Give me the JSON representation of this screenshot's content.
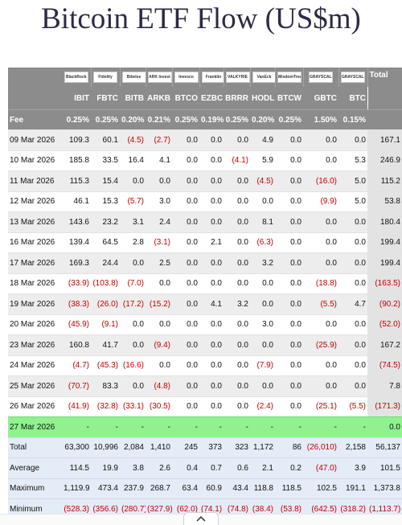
{
  "title": "Bitcoin ETF Flow (US$m)",
  "logos": [
    "BlackRock",
    "Fidelity",
    "Bitwise",
    "ARK Invest",
    "Invesco",
    "Franklin",
    "VALKYRIE",
    "VanEck",
    "WisdomTree",
    "GRAYSCALE",
    "GRAYSCALE"
  ],
  "header": {
    "total_label": "Total",
    "fee_label": "Fee",
    "tickers": [
      "IBIT",
      "FBTC",
      "BITB",
      "ARKB",
      "BTCO",
      "EZBC",
      "BRRR",
      "HODL",
      "BTCW",
      "GBTC",
      "BTC"
    ],
    "fees": [
      "0.25%",
      "0.25%",
      "0.20%",
      "0.21%",
      "0.25%",
      "0.19%",
      "0.25%",
      "0.20%",
      "0.25%",
      "1.50%",
      "0.15%"
    ]
  },
  "rows": [
    {
      "date": "09 Mar 2026",
      "values": [
        "109.3",
        "60.1",
        "(4.5)",
        "(2.7)",
        "0.0",
        "0.0",
        "0.0",
        "4.9",
        "0.0",
        "0.0",
        "0.0"
      ],
      "total": "167.1"
    },
    {
      "date": "10 Mar 2026",
      "values": [
        "185.8",
        "33.5",
        "16.4",
        "4.1",
        "0.0",
        "0.0",
        "(4.1)",
        "5.9",
        "0.0",
        "0.0",
        "5.3"
      ],
      "total": "246.9"
    },
    {
      "date": "11 Mar 2026",
      "values": [
        "115.3",
        "15.4",
        "0.0",
        "0.0",
        "0.0",
        "0.0",
        "0.0",
        "(4.5)",
        "0.0",
        "(16.0)",
        "5.0"
      ],
      "total": "115.2"
    },
    {
      "date": "12 Mar 2026",
      "values": [
        "46.1",
        "15.3",
        "(5.7)",
        "3.0",
        "0.0",
        "0.0",
        "0.0",
        "0.0",
        "0.0",
        "(9.9)",
        "5.0"
      ],
      "total": "53.8"
    },
    {
      "date": "13 Mar 2026",
      "values": [
        "143.6",
        "23.2",
        "3.1",
        "2.4",
        "0.0",
        "0.0",
        "0.0",
        "8.1",
        "0.0",
        "0.0",
        "0.0"
      ],
      "total": "180.4"
    },
    {
      "date": "16 Mar 2026",
      "values": [
        "139.4",
        "64.5",
        "2.8",
        "(3.1)",
        "0.0",
        "2.1",
        "0.0",
        "(6.3)",
        "0.0",
        "0.0",
        "0.0"
      ],
      "total": "199.4"
    },
    {
      "date": "17 Mar 2026",
      "values": [
        "169.3",
        "24.4",
        "0.0",
        "2.5",
        "0.0",
        "0.0",
        "0.0",
        "3.2",
        "0.0",
        "0.0",
        "0.0"
      ],
      "total": "199.4"
    },
    {
      "date": "18 Mar 2026",
      "values": [
        "(33.9)",
        "(103.8)",
        "(7.0)",
        "0.0",
        "0.0",
        "0.0",
        "0.0",
        "0.0",
        "0.0",
        "(18.8)",
        "0.0"
      ],
      "total": "(163.5)"
    },
    {
      "date": "19 Mar 2026",
      "values": [
        "(38.3)",
        "(26.0)",
        "(17.2)",
        "(15.2)",
        "0.0",
        "4.1",
        "3.2",
        "0.0",
        "0.0",
        "(5.5)",
        "4.7"
      ],
      "total": "(90.2)"
    },
    {
      "date": "20 Mar 2026",
      "values": [
        "(45.9)",
        "(9.1)",
        "0.0",
        "0.0",
        "0.0",
        "0.0",
        "0.0",
        "3.0",
        "0.0",
        "0.0",
        "0.0"
      ],
      "total": "(52.0)"
    },
    {
      "date": "23 Mar 2026",
      "values": [
        "160.8",
        "41.7",
        "0.0",
        "(9.4)",
        "0.0",
        "0.0",
        "0.0",
        "0.0",
        "0.0",
        "(25.9)",
        "0.0"
      ],
      "total": "167.2"
    },
    {
      "date": "24 Mar 2026",
      "values": [
        "(4.7)",
        "(45.3)",
        "(16.6)",
        "0.0",
        "0.0",
        "0.0",
        "0.0",
        "(7.9)",
        "0.0",
        "0.0",
        "0.0"
      ],
      "total": "(74.5)"
    },
    {
      "date": "25 Mar 2026",
      "values": [
        "(70.7)",
        "83.3",
        "0.0",
        "(4.8)",
        "0.0",
        "0.0",
        "0.0",
        "0.0",
        "0.0",
        "0.0",
        "0.0"
      ],
      "total": "7.8"
    },
    {
      "date": "26 Mar 2026",
      "values": [
        "(41.9)",
        "(32.8)",
        "(33.1)",
        "(30.5)",
        "0.0",
        "0.0",
        "0.0",
        "(2.4)",
        "0.0",
        "(25.1)",
        "(5.5)"
      ],
      "total": "(171.3)"
    },
    {
      "date": "27 Mar 2026",
      "values": [
        "-",
        "-",
        "-",
        "-",
        "-",
        "-",
        "-",
        "-",
        "-",
        "-",
        "-"
      ],
      "total": "0.0",
      "highlight": "#8ff28f"
    }
  ],
  "stats": [
    {
      "label": "Total",
      "values": [
        "63,300",
        "10,996",
        "2,084",
        "1,410",
        "245",
        "373",
        "323",
        "1,172",
        "86",
        "(26,010)",
        "2,158"
      ],
      "total": "56,137"
    },
    {
      "label": "Average",
      "values": [
        "114.5",
        "19.9",
        "3.8",
        "2.6",
        "0.4",
        "0.7",
        "0.6",
        "2.1",
        "0.2",
        "(47.0)",
        "3.9"
      ],
      "total": "101.5"
    },
    {
      "label": "Maximum",
      "values": [
        "1,119.9",
        "473.4",
        "237.9",
        "268.7",
        "63.4",
        "60.9",
        "43.4",
        "118.8",
        "118.5",
        "102.5",
        "191.1"
      ],
      "total": "1,373.8"
    },
    {
      "label": "Minimum",
      "values": [
        "(528.3)",
        "(356.6)",
        "(280.7)",
        "(327.9)",
        "(62.0)",
        "(74.1)",
        "(74.8)",
        "(38.4)",
        "(53.8)",
        "(642.5)",
        "(318.2)"
      ],
      "total": "(1,113.7)"
    }
  ],
  "colors": {
    "header_bg": "#8c8c8c",
    "negative": "#c00000",
    "stats_bg": "#e4ecf7",
    "title": "#2b2b45"
  },
  "icons": {
    "scroll_top": "chevron-up-icon"
  }
}
